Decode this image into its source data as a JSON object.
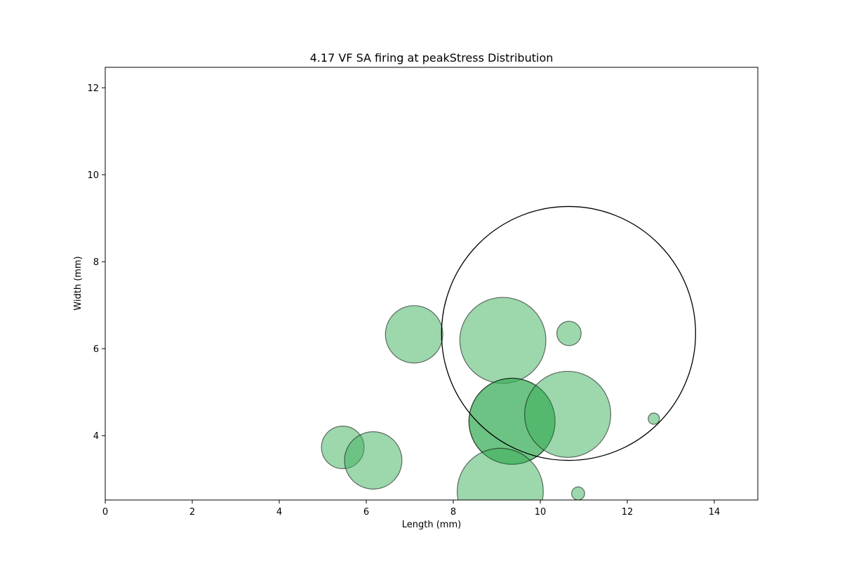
{
  "chart_data": {
    "type": "scatter",
    "title": "4.17 VF SA firing at peakStress Distribution",
    "xlabel": "Length (mm)",
    "ylabel": "Width (mm)",
    "xlim": [
      0,
      15
    ],
    "ylim": [
      2.52,
      12.47
    ],
    "xticks": [
      "0",
      "2",
      "4",
      "6",
      "8",
      "10",
      "12",
      "14"
    ],
    "yticks": [
      "4",
      "6",
      "8",
      "10",
      "12"
    ],
    "xtick_values": [
      0,
      2,
      4,
      6,
      8,
      10,
      12,
      14
    ],
    "ytick_values": [
      4,
      6,
      8,
      10,
      12
    ],
    "grid": false,
    "marker_fill": "#3cb05a",
    "marker_alpha": 0.5,
    "marker_edge": "#000000",
    "outline_circle": {
      "x": 10.65,
      "y": 6.35,
      "r": 2.92
    },
    "series": [
      {
        "points": [
          {
            "x": 7.1,
            "y": 6.33,
            "r": 0.66
          },
          {
            "x": 9.14,
            "y": 6.19,
            "r": 0.99
          },
          {
            "x": 10.66,
            "y": 6.35,
            "r": 0.28
          },
          {
            "x": 9.35,
            "y": 4.33,
            "r": 0.99
          },
          {
            "x": 9.35,
            "y": 4.33,
            "r": 0.99
          },
          {
            "x": 10.63,
            "y": 4.49,
            "r": 0.99
          },
          {
            "x": 12.61,
            "y": 4.39,
            "r": 0.13
          },
          {
            "x": 5.46,
            "y": 3.73,
            "r": 0.49
          },
          {
            "x": 6.16,
            "y": 3.43,
            "r": 0.66
          },
          {
            "x": 9.08,
            "y": 2.72,
            "r": 0.99
          },
          {
            "x": 10.87,
            "y": 2.67,
            "r": 0.15
          }
        ]
      }
    ]
  }
}
